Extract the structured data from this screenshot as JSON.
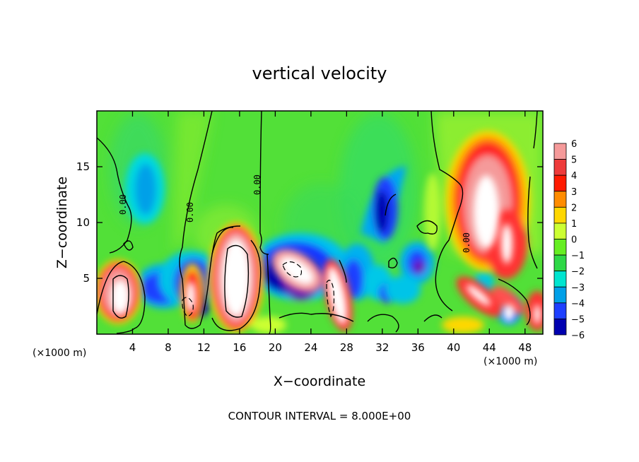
{
  "chart_data": {
    "type": "heatmap",
    "title": "vertical velocity",
    "xlabel": "X−coordinate",
    "ylabel": "Z−coordinate",
    "x_unit_left": "(×1000 m)",
    "x_unit_right": "(×1000 m)",
    "xlim": [
      0,
      50
    ],
    "ylim": [
      0,
      20
    ],
    "xticks": [
      4,
      8,
      12,
      16,
      20,
      24,
      28,
      32,
      36,
      40,
      44,
      48
    ],
    "xtick_labels": [
      "4",
      "8",
      "12",
      "16",
      "20",
      "24",
      "28",
      "32",
      "36",
      "40",
      "44",
      "48"
    ],
    "yticks": [
      5,
      10,
      15
    ],
    "ytick_labels": [
      "5",
      "10",
      "15"
    ],
    "colorbar": {
      "levels": [
        6,
        5,
        4,
        3,
        2,
        1,
        0,
        -1,
        -2,
        -3,
        -4,
        -5,
        -6
      ],
      "labels": [
        "6",
        "5",
        "4",
        "3",
        "2",
        "1",
        "0",
        "−1",
        "−2",
        "−3",
        "−4",
        "−5",
        "−6"
      ],
      "colors": [
        "#f59a9a",
        "#ee3b3b",
        "#ff1a00",
        "#ff8c00",
        "#ffd700",
        "#ccff33",
        "#66ee22",
        "#2ed846",
        "#00e5d0",
        "#00a0e8",
        "#1e40ff",
        "#0000b0",
        "#7a10b8"
      ]
    },
    "features": [
      {
        "kind": "updraft",
        "x": 2.8,
        "z": 3.7,
        "peak": 8
      },
      {
        "kind": "updraft",
        "x": 10.6,
        "z": 3.2,
        "peak": 7
      },
      {
        "kind": "updraft",
        "x": 15.8,
        "z": 5.3,
        "peak": 8
      },
      {
        "kind": "updraft",
        "x": 26.6,
        "z": 3.6,
        "peak": 7
      },
      {
        "kind": "updraft",
        "x": 44.2,
        "z": 11.0,
        "peak": 8
      },
      {
        "kind": "updraft",
        "x": 46.6,
        "z": 8.3,
        "peak": 7
      },
      {
        "kind": "updraft",
        "x": 42.4,
        "z": 3.6,
        "peak": 7
      },
      {
        "kind": "updraft",
        "x": 46.1,
        "z": 2.0,
        "peak": 6
      },
      {
        "kind": "updraft",
        "x": 49.5,
        "z": 2.2,
        "peak": 5
      },
      {
        "kind": "downdraft",
        "x": 22.6,
        "z": 6.0,
        "peak": -8
      },
      {
        "kind": "downdraft",
        "x": 31.0,
        "z": 10.8,
        "peak": -6
      },
      {
        "kind": "downdraft",
        "x": 11.0,
        "z": 6.0,
        "peak": -5
      },
      {
        "kind": "downdraft",
        "x": 7.0,
        "z": 4.6,
        "peak": -5
      },
      {
        "kind": "downdraft",
        "x": 35.7,
        "z": 6.0,
        "peak": -6
      },
      {
        "kind": "downdraft",
        "x": 5.4,
        "z": 13.3,
        "peak": -3
      }
    ],
    "contour_labels": [
      "0.00",
      "0.00",
      "0.00",
      "0.00"
    ],
    "grid": false,
    "legend": "right colorbar"
  },
  "footer": {
    "contour_interval": "CONTOUR INTERVAL = 8.000E+00"
  }
}
